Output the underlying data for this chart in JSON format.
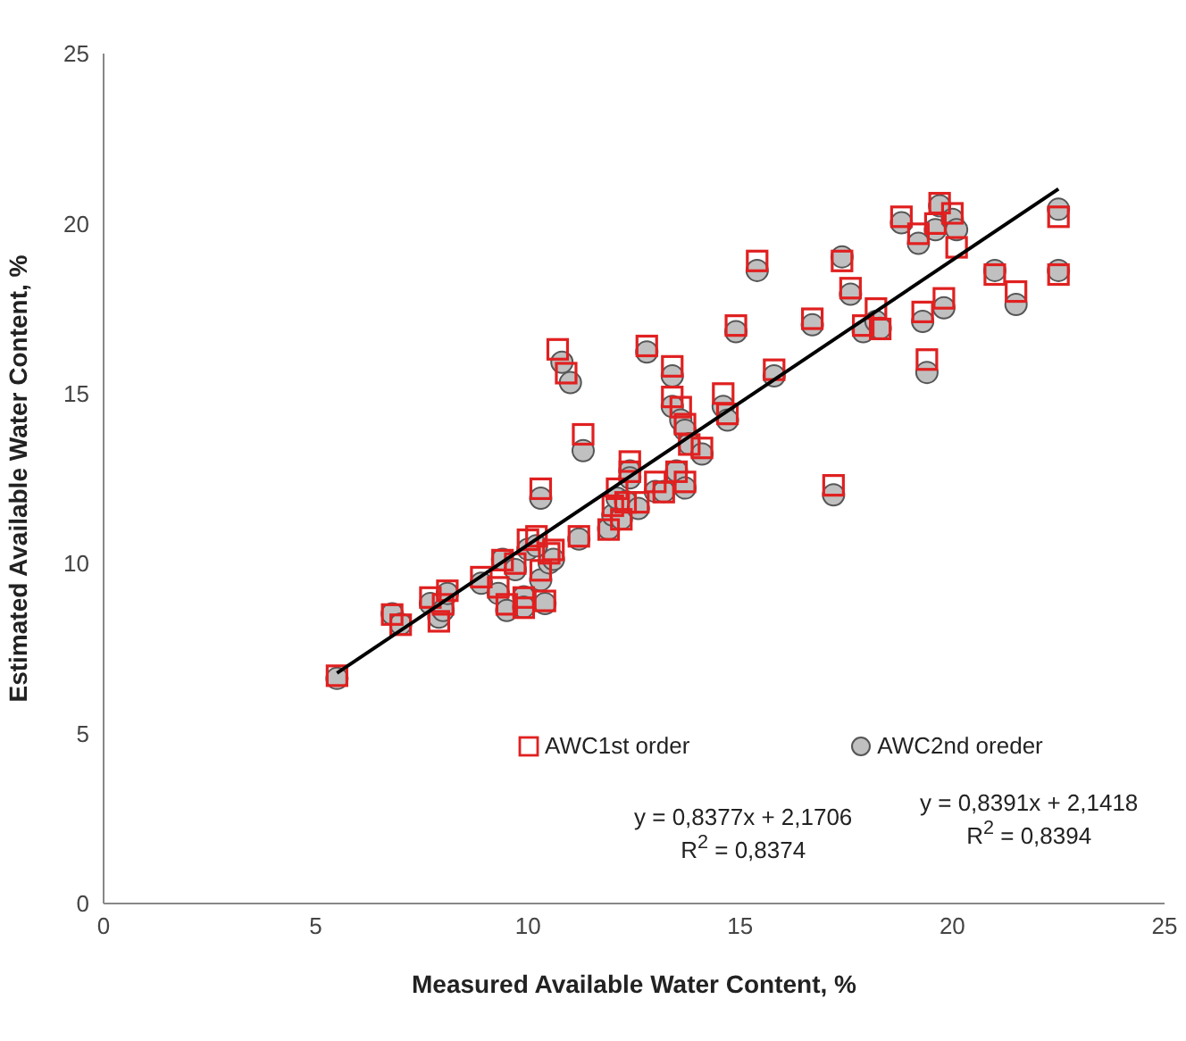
{
  "chart_data": {
    "type": "scatter",
    "xlabel": "Measured Available Water Content, %",
    "ylabel": "Estimated Available Water Content, %",
    "xlim": [
      0,
      25
    ],
    "ylim": [
      0,
      25
    ],
    "xticks": [
      0,
      5,
      10,
      15,
      20,
      25
    ],
    "yticks": [
      0,
      5,
      10,
      15,
      20,
      25
    ],
    "grid": false,
    "legend": "bottom",
    "annotations": [
      "y = 0,8377x + 2,1706\nR$^{2}$ = 0,8374",
      "y = 0,8391x + 2,1418\nR$^{2}$ = 0,8394"
    ],
    "series": [
      {
        "name": "AWC1st order",
        "color": "#e02020",
        "marker": "square",
        "x": [
          5.5,
          6.8,
          7.0,
          7.7,
          7.9,
          8.0,
          8.1,
          8.9,
          9.3,
          9.4,
          9.5,
          9.7,
          9.9,
          9.9,
          10.0,
          10.2,
          10.3,
          10.4,
          10.5,
          10.6,
          10.3,
          10.7,
          10.9,
          11.2,
          11.3,
          11.9,
          12.0,
          12.1,
          12.2,
          12.3,
          12.4,
          12.4,
          12.6,
          12.8,
          13.0,
          13.2,
          13.4,
          13.4,
          13.5,
          13.6,
          13.7,
          13.8,
          14.1,
          13.7,
          14.6,
          14.7,
          14.9,
          15.4,
          15.8,
          16.7,
          17.2,
          17.4,
          17.6,
          17.9,
          18.2,
          18.3,
          18.8,
          19.2,
          19.3,
          19.4,
          19.6,
          19.7,
          19.8,
          20.0,
          20.1,
          21.0,
          21.5,
          22.5,
          22.5
        ],
        "values": [
          6.7,
          8.5,
          8.2,
          9.0,
          8.3,
          8.8,
          9.2,
          9.6,
          9.3,
          10.1,
          8.8,
          10.0,
          9.0,
          8.7,
          10.7,
          10.8,
          9.8,
          8.9,
          10.3,
          10.4,
          12.2,
          16.3,
          15.6,
          10.8,
          13.8,
          11.0,
          11.7,
          12.2,
          11.3,
          11.8,
          13.0,
          12.7,
          11.8,
          16.4,
          12.4,
          12.1,
          15.8,
          14.9,
          12.7,
          14.6,
          14.1,
          13.5,
          13.4,
          12.4,
          15.0,
          14.4,
          17.0,
          18.9,
          15.7,
          17.2,
          12.3,
          18.9,
          18.1,
          17.0,
          17.5,
          16.9,
          20.2,
          19.7,
          17.4,
          16.0,
          20.0,
          20.6,
          17.8,
          20.3,
          19.3,
          18.5,
          18.0,
          20.2,
          18.5
        ]
      },
      {
        "name": "AWC2nd oreder",
        "color": "#c0c0c0",
        "marker": "circle",
        "x": [
          5.5,
          6.8,
          7.0,
          7.7,
          7.9,
          8.0,
          8.1,
          8.9,
          9.3,
          9.4,
          9.5,
          9.7,
          9.9,
          9.9,
          10.0,
          10.2,
          10.3,
          10.4,
          10.5,
          10.6,
          10.3,
          10.8,
          11.0,
          11.2,
          11.3,
          11.9,
          12.0,
          12.1,
          12.2,
          12.3,
          12.4,
          12.4,
          12.6,
          12.8,
          13.0,
          13.2,
          13.4,
          13.4,
          13.5,
          13.6,
          13.7,
          13.8,
          14.1,
          13.7,
          14.6,
          14.7,
          14.9,
          15.4,
          15.8,
          16.7,
          17.2,
          17.4,
          17.6,
          17.9,
          18.2,
          18.3,
          18.8,
          19.2,
          19.3,
          19.4,
          19.6,
          19.7,
          19.8,
          20.0,
          20.1,
          21.0,
          21.5,
          22.5,
          22.5
        ],
        "values": [
          6.7,
          8.6,
          8.3,
          8.9,
          8.5,
          8.7,
          9.2,
          9.5,
          9.2,
          10.2,
          8.7,
          9.9,
          9.1,
          8.8,
          10.5,
          10.6,
          9.6,
          8.9,
          10.1,
          10.2,
          12.0,
          16.0,
          15.4,
          10.8,
          13.4,
          11.1,
          11.5,
          12.0,
          11.4,
          11.9,
          12.8,
          12.6,
          11.7,
          16.3,
          12.2,
          12.2,
          15.6,
          14.7,
          12.8,
          14.3,
          14.0,
          13.6,
          13.3,
          12.3,
          14.7,
          14.3,
          16.9,
          18.7,
          15.6,
          17.1,
          12.1,
          19.1,
          18.0,
          16.9,
          17.2,
          17.0,
          20.1,
          19.5,
          17.2,
          15.7,
          19.9,
          20.6,
          17.6,
          20.2,
          19.9,
          18.7,
          17.7,
          20.5,
          18.7
        ]
      },
      {
        "type": "line",
        "color": "#000000",
        "marker": "none",
        "x": [
          5.5,
          22.5
        ],
        "values": [
          6.78,
          21.02
        ]
      }
    ]
  }
}
